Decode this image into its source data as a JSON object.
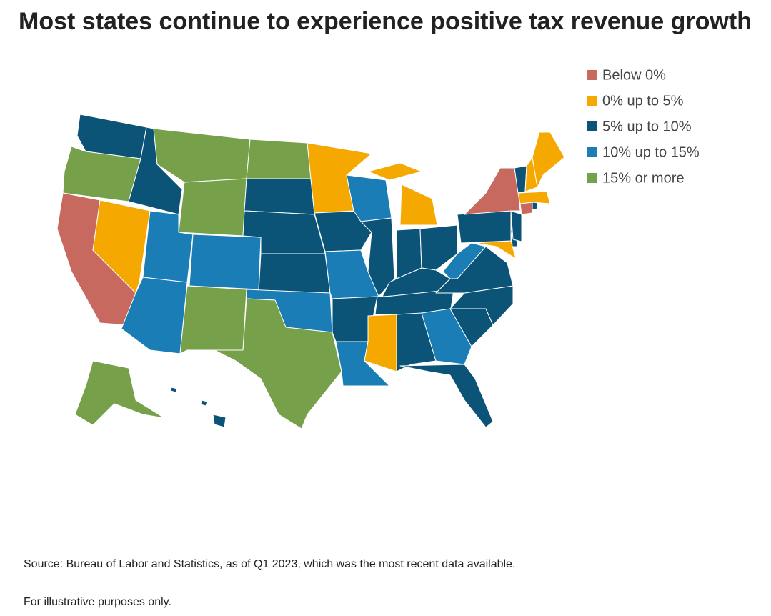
{
  "title": "Most states continue to experience positive tax revenue growth",
  "legend": [
    {
      "label": "Below 0%",
      "color": "#c8695f"
    },
    {
      "label": "0% up to 5%",
      "color": "#f5a800"
    },
    {
      "label": "5% up to 10%",
      "color": "#0b5478"
    },
    {
      "label": "10% up to 15%",
      "color": "#1a7db5"
    },
    {
      "label": "15% or more",
      "color": "#76a04a"
    }
  ],
  "regions": [
    2,
    4,
    0,
    1,
    2,
    4,
    4,
    3,
    3,
    3,
    4,
    4,
    2,
    2,
    2,
    3,
    4,
    1,
    2,
    3,
    2,
    3,
    3,
    2,
    1,
    2,
    2,
    2,
    2,
    1,
    2,
    3,
    2,
    2,
    2,
    2,
    3,
    1,
    2,
    2,
    2,
    0,
    0,
    2,
    1,
    2,
    1,
    1,
    4,
    2
  ],
  "source": "Source: Bureau of Labor and Statistics, as of Q1 2023, which was the most recent data available.",
  "note": "For illustrative purposes only."
}
